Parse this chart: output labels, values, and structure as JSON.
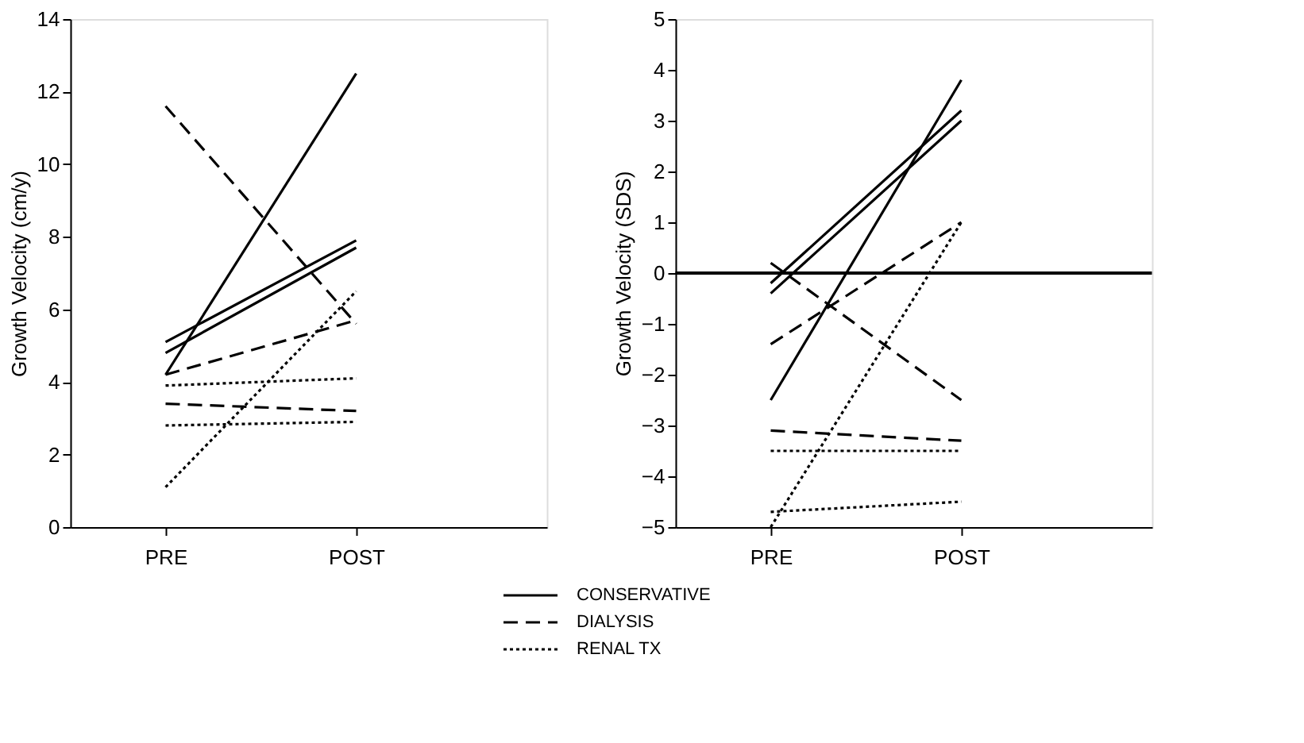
{
  "chart_data": [
    {
      "type": "line",
      "categories": [
        "PRE",
        "POST"
      ],
      "ylabel": "Growth Velocity (cm/y)",
      "ylim": [
        0,
        14
      ],
      "yticks": [
        0,
        2,
        4,
        6,
        8,
        10,
        12,
        14
      ],
      "grid": false,
      "legend": "bottom",
      "series": [
        {
          "name": "CONSERVATIVE",
          "color": "#000000",
          "line_style": "solid",
          "values": [
            4.2,
            12.5
          ]
        },
        {
          "color": "#000000",
          "line_style": "solid",
          "values": [
            5.1,
            7.9
          ]
        },
        {
          "color": "#000000",
          "line_style": "solid",
          "values": [
            4.8,
            7.7
          ]
        },
        {
          "name": "DIALYSIS",
          "color": "#000000",
          "line_style": "dashed",
          "values": [
            11.6,
            5.6
          ]
        },
        {
          "color": "#000000",
          "line_style": "dashed",
          "values": [
            4.2,
            5.7
          ]
        },
        {
          "color": "#000000",
          "line_style": "dashed",
          "values": [
            3.4,
            3.2
          ]
        },
        {
          "name": "RENAL TX",
          "color": "#000000",
          "line_style": "dotted",
          "values": [
            3.9,
            4.1
          ]
        },
        {
          "color": "#000000",
          "line_style": "dotted",
          "values": [
            2.8,
            2.9
          ]
        },
        {
          "color": "#000000",
          "line_style": "dotted",
          "values": [
            1.1,
            6.5
          ]
        }
      ]
    },
    {
      "type": "line",
      "categories": [
        "PRE",
        "POST"
      ],
      "ylabel": "Growth Velocity (SDS)",
      "ylim": [
        -5,
        5
      ],
      "yticks": [
        -5,
        -4,
        -3,
        -2,
        -1,
        0,
        1,
        2,
        3,
        4,
        5
      ],
      "grid": false,
      "legend": "bottom",
      "ref_lines": [
        {
          "axis": "y",
          "value": 0,
          "color": "#000000"
        }
      ],
      "series": [
        {
          "name": "CONSERVATIVE",
          "color": "#000000",
          "line_style": "solid",
          "values": [
            -2.5,
            3.8
          ]
        },
        {
          "color": "#000000",
          "line_style": "solid",
          "values": [
            -0.2,
            3.2
          ]
        },
        {
          "color": "#000000",
          "line_style": "solid",
          "values": [
            -0.4,
            3.0
          ]
        },
        {
          "name": "DIALYSIS",
          "color": "#000000",
          "line_style": "dashed",
          "values": [
            0.2,
            -2.5
          ]
        },
        {
          "color": "#000000",
          "line_style": "dashed",
          "values": [
            -1.4,
            1.0
          ]
        },
        {
          "color": "#000000",
          "line_style": "dashed",
          "values": [
            -3.1,
            -3.3
          ]
        },
        {
          "name": "RENAL TX",
          "color": "#000000",
          "line_style": "dotted",
          "values": [
            -3.5,
            -3.5
          ]
        },
        {
          "color": "#000000",
          "line_style": "dotted",
          "values": [
            -4.7,
            -4.5
          ]
        },
        {
          "color": "#000000",
          "line_style": "dotted",
          "values": [
            -5.0,
            1.0
          ]
        }
      ]
    }
  ]
}
